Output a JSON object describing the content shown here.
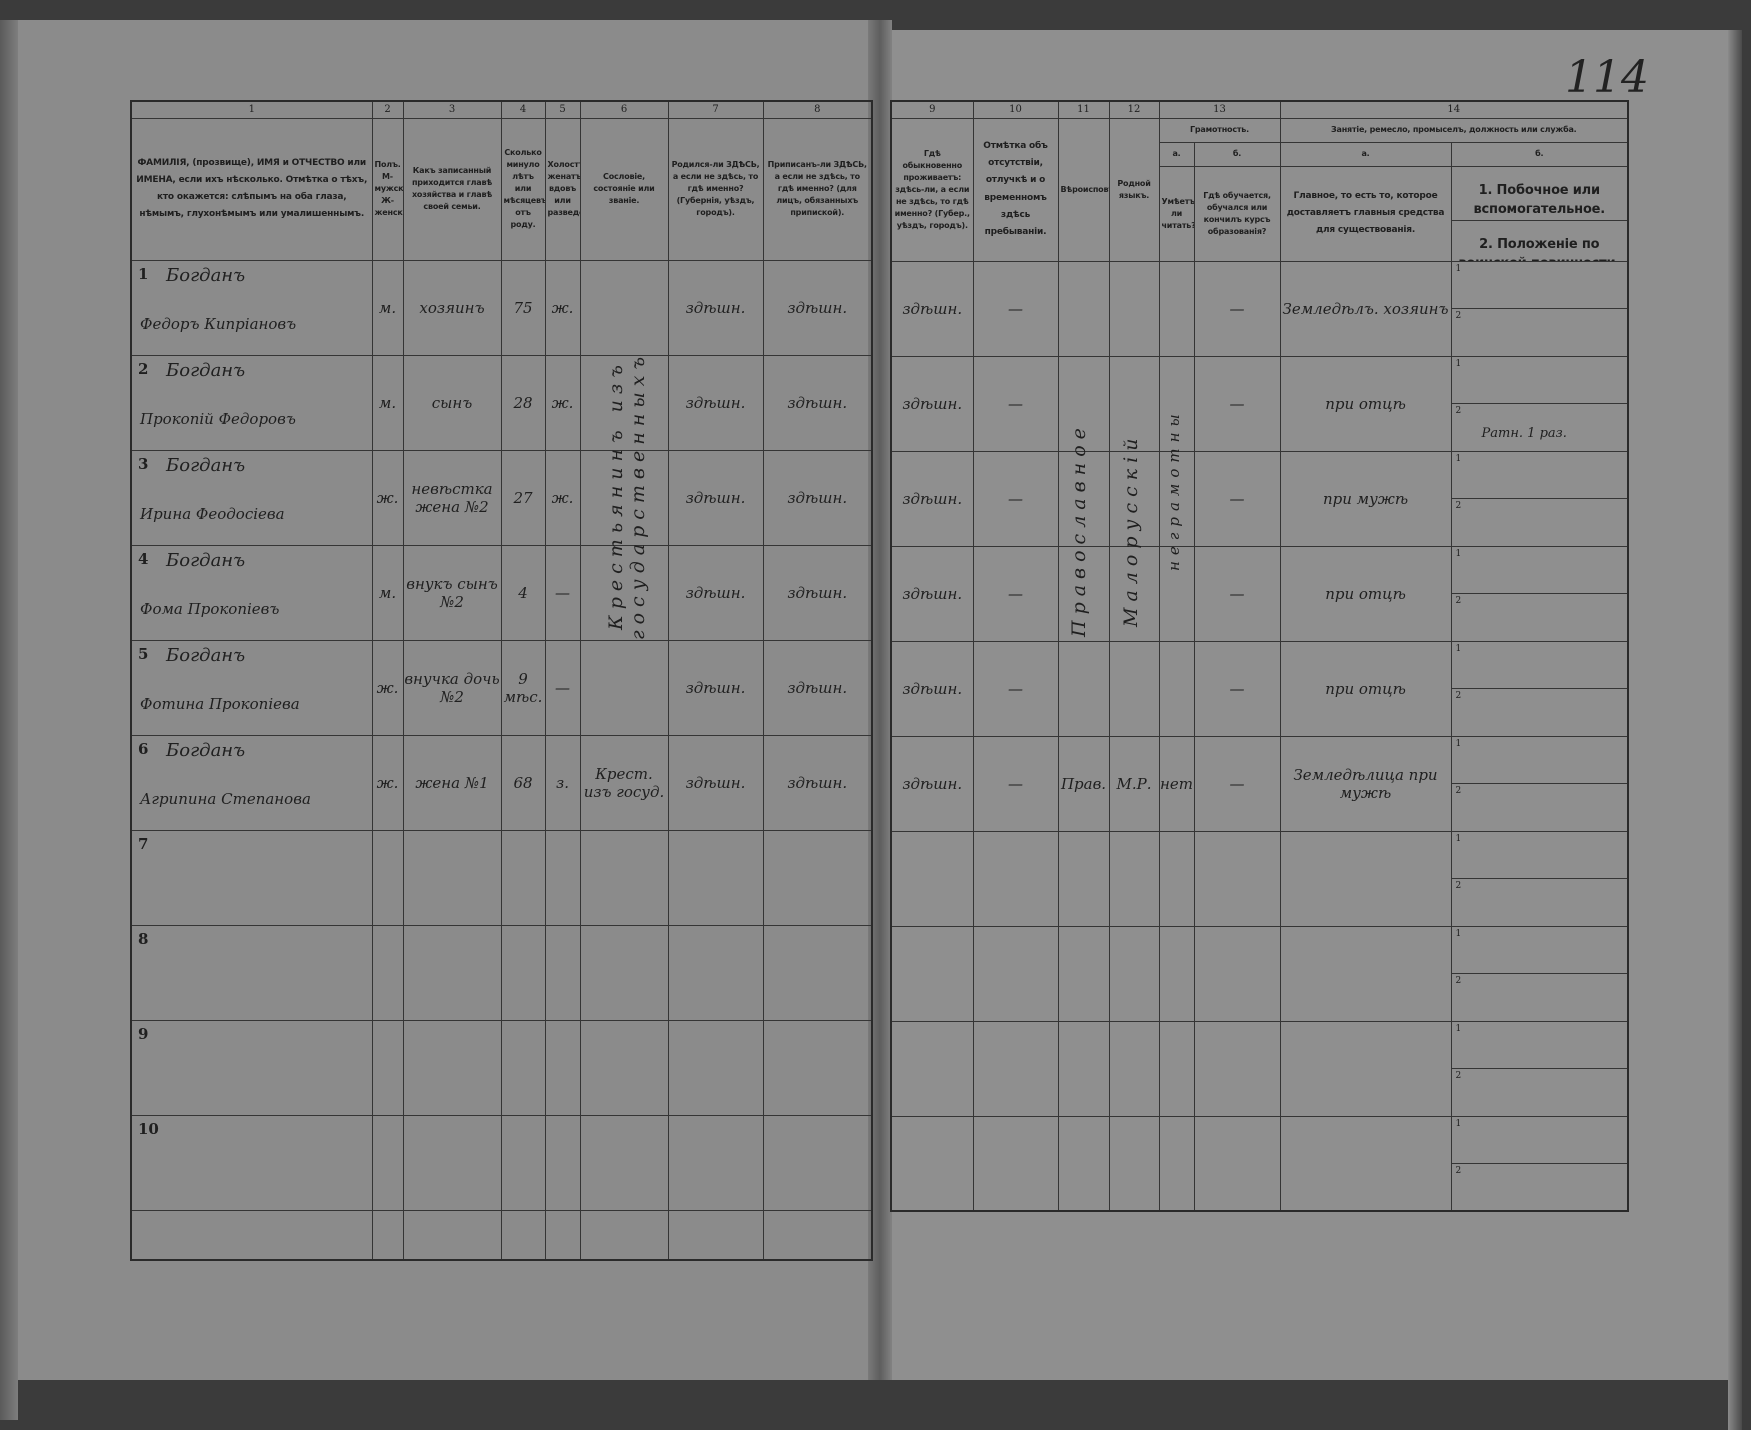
{
  "page_number": "114",
  "left_headers": [
    {
      "num": "1",
      "text": "ФАМИЛІЯ, (прозвище), ИМЯ и ОТЧЕСТВО или ИМЕНА, если ихъ нѣсколько. Отмѣтка о тѣхъ, кто окажется: слѣпымъ на оба глаза, нѣмымъ, глухонѣмымъ или умалишеннымъ."
    },
    {
      "num": "2",
      "text": "Полъ. М-мужской. Ж-женскій."
    },
    {
      "num": "3",
      "text": "Какъ записанный приходится главѣ хозяйства и главѣ своей семьи."
    },
    {
      "num": "4",
      "text": "Сколько минуло лѣтъ или мѣсяцевъ отъ роду."
    },
    {
      "num": "5",
      "text": "Холостъ, женатъ, вдовъ или разведенъ."
    },
    {
      "num": "6",
      "text": "Сословіе, состояніе или званіе."
    },
    {
      "num": "7",
      "text": "Родился-ли ЗДѢСЬ, а если не здѣсь, то гдѣ именно? (Губернія, уѣздъ, городъ)."
    },
    {
      "num": "8",
      "text": "Приписанъ-ли ЗДѢСЬ, а если не здѣсь, то гдѣ именно? (для лицъ, обязанныхъ припиской)."
    }
  ],
  "right_headers": {
    "c9": {
      "num": "9",
      "text": "Гдѣ обыкновенно проживаетъ: здѣсь-ли, а если не здѣсь, то гдѣ именно? (Губер., уѣздъ, городъ)."
    },
    "c10": {
      "num": "10",
      "text": "Отмѣтка объ отсутствіи, отлучкѣ и о временномъ здѣсь пребываніи."
    },
    "c11": {
      "num": "11",
      "text": "Вѣроисповѣданіе."
    },
    "c12": {
      "num": "12",
      "text": "Родной языкъ."
    },
    "c13": {
      "num": "13",
      "text": "Грамотность.",
      "a_label": "а.",
      "a_text": "Умѣетъ-ли читать?",
      "b_label": "б.",
      "b_text": "Гдѣ обучается, обучался или кончилъ курсъ образованія?"
    },
    "c14": {
      "num": "14",
      "text": "Занятіе, ремесло, промыселъ, должность или служба.",
      "a_label": "а.",
      "a_text": "Главное, то есть то, которое доставляетъ главныя средства для существованія.",
      "b_label": "б.",
      "b1_text": "1. Побочное или вспомогательное.",
      "b2_text": "2. Положеніе по воинской повинности."
    }
  },
  "spanning_entries": {
    "estate": "Крестьянинъ изъ государственныхъ",
    "religion": "Православное",
    "language": "Малорусскій",
    "literacy": "неграмотны"
  },
  "sub_labels": [
    "1",
    "2"
  ],
  "rows": [
    {
      "n": "1",
      "surname": "Богданъ",
      "given": "Федоръ Кипріановъ",
      "sex": "м.",
      "relation": "хозяинъ",
      "age": "75",
      "marital": "ж.",
      "estate": "",
      "born": "здѣшн.",
      "registered": "здѣшн.",
      "residence": "здѣшн.",
      "absence": "—",
      "religion": "",
      "language": "",
      "literacy": "",
      "education": "—",
      "occupation": "Земледѣлъ. хозяинъ",
      "secondary": "",
      "military": ""
    },
    {
      "n": "2",
      "surname": "Богданъ",
      "given": "Прокопій Федоровъ",
      "sex": "м.",
      "relation": "сынъ",
      "age": "28",
      "marital": "ж.",
      "estate": "",
      "born": "здѣшн.",
      "registered": "здѣшн.",
      "residence": "здѣшн.",
      "absence": "—",
      "religion": "",
      "language": "",
      "literacy": "",
      "education": "—",
      "occupation": "при отцѣ",
      "secondary": "",
      "military": "Ратн. 1 раз."
    },
    {
      "n": "3",
      "surname": "Богданъ",
      "given": "Ирина Феодосіева",
      "sex": "ж.",
      "relation": "невѣстка жена №2",
      "age": "27",
      "marital": "ж.",
      "estate": "",
      "born": "здѣшн.",
      "registered": "здѣшн.",
      "residence": "здѣшн.",
      "absence": "—",
      "religion": "",
      "language": "",
      "literacy": "",
      "education": "—",
      "occupation": "при мужѣ",
      "secondary": "",
      "military": ""
    },
    {
      "n": "4",
      "surname": "Богданъ",
      "given": "Фома Прокопіевъ",
      "sex": "м.",
      "relation": "внукъ сынъ №2",
      "age": "4",
      "marital": "—",
      "estate": "",
      "born": "здѣшн.",
      "registered": "здѣшн.",
      "residence": "здѣшн.",
      "absence": "—",
      "religion": "",
      "language": "",
      "literacy": "",
      "education": "—",
      "occupation": "при отцѣ",
      "secondary": "",
      "military": ""
    },
    {
      "n": "5",
      "surname": "Богданъ",
      "given": "Фотина Прокопіева",
      "sex": "ж.",
      "relation": "внучка дочь №2",
      "age": "9 мѣс.",
      "marital": "—",
      "estate": "",
      "born": "здѣшн.",
      "registered": "здѣшн.",
      "residence": "здѣшн.",
      "absence": "—",
      "religion": "",
      "language": "",
      "literacy": "",
      "education": "—",
      "occupation": "при отцѣ",
      "secondary": "",
      "military": ""
    },
    {
      "n": "6",
      "surname": "Богданъ",
      "given": "Агрипина Степанова",
      "sex": "ж.",
      "relation": "жена №1",
      "age": "68",
      "marital": "з.",
      "estate": "Крест. изъ госуд.",
      "born": "здѣшн.",
      "registered": "здѣшн.",
      "residence": "здѣшн.",
      "absence": "—",
      "religion": "Прав.",
      "language": "М.Р.",
      "literacy": "нет",
      "education": "—",
      "occupation": "Земледѣлица при мужѣ",
      "secondary": "",
      "military": ""
    },
    {
      "n": "7"
    },
    {
      "n": "8"
    },
    {
      "n": "9"
    },
    {
      "n": "10"
    }
  ]
}
